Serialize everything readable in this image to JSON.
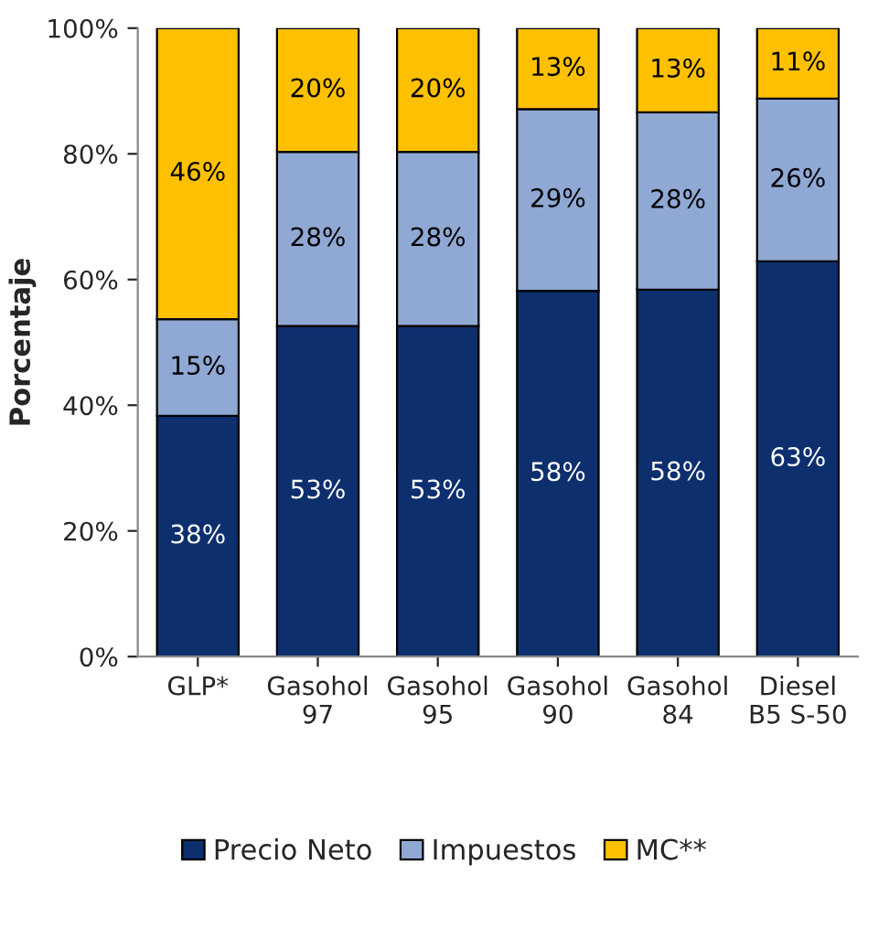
{
  "chart_data": {
    "type": "bar",
    "stacked": true,
    "ylabel": "Porcentaje",
    "categories": [
      "GLP*",
      "Gasohol\n97",
      "Gasohol\n95",
      "Gasohol\n90",
      "Gasohol\n84",
      "Diesel\nB5 S-50"
    ],
    "series": [
      {
        "name": "Precio Neto",
        "color": "#0d2f6e",
        "values": [
          38.3,
          52.6,
          52.6,
          58.2,
          58.4,
          62.9
        ],
        "value_labels": [
          "38%",
          "53%",
          "53%",
          "58%",
          "58%",
          "63%"
        ]
      },
      {
        "name": "Impuestos",
        "color": "#8fa8d4",
        "values": [
          15.4,
          27.7,
          27.7,
          28.9,
          28.2,
          25.9
        ],
        "value_labels": [
          "15%",
          "28%",
          "28%",
          "29%",
          "28%",
          "26%"
        ]
      },
      {
        "name": "MC**",
        "color": "#ffc000",
        "values": [
          46.3,
          19.7,
          19.7,
          12.9,
          13.4,
          11.2
        ],
        "value_labels": [
          "46%",
          "20%",
          "20%",
          "13%",
          "13%",
          "11%"
        ]
      }
    ],
    "ylim": [
      0,
      100
    ],
    "yticks": [
      {
        "value": 0,
        "label": "0%"
      },
      {
        "value": 20,
        "label": "20%"
      },
      {
        "value": 40,
        "label": "40%"
      },
      {
        "value": 60,
        "label": "60%"
      },
      {
        "value": 80,
        "label": "80%"
      },
      {
        "value": 100,
        "label": "100%"
      }
    ],
    "grid": false,
    "legend": "bottom"
  }
}
